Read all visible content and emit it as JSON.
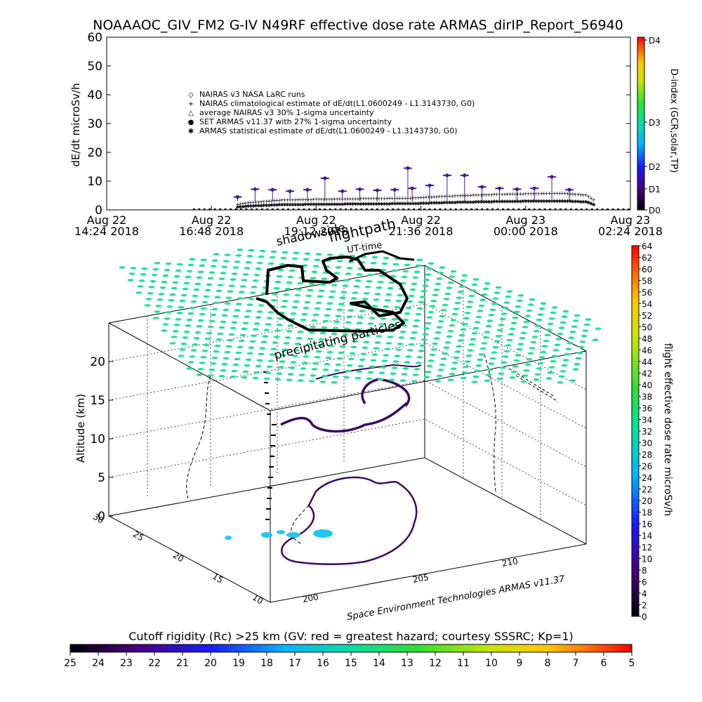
{
  "title": "NOAAAOC_GIV_FM2 G-IV    N49RF   effective dose rate ARMAS_dirIP_Report_56940",
  "colors": {
    "bg": "#ffffff",
    "grid": "#000000",
    "set_armas": "#4b1a8a",
    "green_field": "#1fe39a",
    "cyan_patch": "#1ec8f0"
  },
  "chart_data": [
    {
      "type": "scatter",
      "ylabel": "dE/dt microSv/h",
      "ylim": [
        0,
        60
      ],
      "yticks": [
        "0",
        "10",
        "20",
        "30",
        "40",
        "50",
        "60"
      ],
      "xticks": [
        {
          "day": "Aug 22",
          "time": "14:24 2018"
        },
        {
          "day": "Aug 22",
          "time": "16:48 2018"
        },
        {
          "day": "Aug 22",
          "time": "19:12 2018"
        },
        {
          "day": "Aug 22",
          "time": "21:36 2018"
        },
        {
          "day": "Aug 23",
          "time": "00:00 2018"
        },
        {
          "day": "Aug 23",
          "time": "02:24 2018"
        }
      ],
      "legend": [
        {
          "symbol": "◇",
          "label": "NAIRAS v3 NASA LaRC runs"
        },
        {
          "symbol": "+",
          "label": "NAIRAS climatological estimate of dE/dt(L1.0600249 - L1.3143730, G0)"
        },
        {
          "symbol": "△",
          "label": "average NAIRAS v3 30% 1-sigma uncertainty"
        },
        {
          "symbol": "●",
          "label": "SET ARMAS v11.37 with 27% 1-sigma uncertainty"
        },
        {
          "symbol": "✱",
          "label": "ARMAS statistical estimate of dE/dt(L1.0600249 - L1.3143730, G0)"
        }
      ],
      "legend_position": "upper-left",
      "dindex_labels": [
        "D0",
        "D1",
        "D2",
        "D3",
        "D4"
      ],
      "dindex_title": "D-index (GCR,solar,TP)",
      "series": [
        {
          "name": "NAIRAS climatological estimate of dE/dt(L1.0600249 - L1.3143730, G0)",
          "hours": [
            0.5,
            1.5,
            2.0,
            2.5,
            2.8,
            3.2,
            4.0,
            5.0,
            6.0,
            7.0,
            8.0,
            9.0,
            10.0,
            10.5,
            11.0,
            11.3,
            11.8
          ],
          "values": [
            0,
            0,
            0,
            0.5,
            1.5,
            2.5,
            3.5,
            3.8,
            4.0,
            4.2,
            5.0,
            5.5,
            5.8,
            5.8,
            5.2,
            2.0,
            0
          ]
        },
        {
          "name": "SET ARMAS v11.37 with 27% 1-sigma uncertainty",
          "hours": [
            3.0,
            3.4,
            3.8,
            4.2,
            4.6,
            5.0,
            5.4,
            5.8,
            6.2,
            6.6,
            6.9,
            7.0,
            7.4,
            7.8,
            8.2,
            8.6,
            9.0,
            9.4,
            9.8,
            10.2,
            10.6
          ],
          "values": [
            4.5,
            7.2,
            7.0,
            6.5,
            7.0,
            11.0,
            6.5,
            7.2,
            6.8,
            7.0,
            14.5,
            7.5,
            8.5,
            12.0,
            12.0,
            8.0,
            7.5,
            7.2,
            7.5,
            11.5,
            7.0
          ]
        }
      ]
    },
    {
      "type": "scatter",
      "zlabel": "Altitude (km)",
      "zticks": [
        "0",
        "5",
        "10",
        "15",
        "20"
      ],
      "lat_ticks": [
        "10",
        "15",
        "20",
        "25",
        "30"
      ],
      "lon_ticks": [
        "200",
        "205",
        "210"
      ],
      "annotations": [
        "shadowside",
        "flightpath",
        "UT-time",
        "precipitating particles"
      ],
      "credit": "Space Environment Technologies ARMAS v11.37",
      "dose_colorbar_title": "flight effective dose rate microSv/h",
      "dose_colorbar_ticks": [
        "0",
        "2",
        "4",
        "6",
        "8",
        "10",
        "12",
        "14",
        "16",
        "18",
        "20",
        "22",
        "24",
        "26",
        "28",
        "30",
        "32",
        "34",
        "36",
        "38",
        "40",
        "42",
        "44",
        "46",
        "48",
        "50",
        "52",
        "54",
        "56",
        "58",
        "60",
        "62",
        "64"
      ]
    }
  ],
  "bottom_colorbar": {
    "title": "Cutoff rigidity (Rc) >25 km (GV: red = greatest hazard; courtesy SSSRC; Kp=1)",
    "ticks": [
      "25",
      "24",
      "23",
      "22",
      "21",
      "20",
      "19",
      "18",
      "17",
      "16",
      "15",
      "14",
      "13",
      "12",
      "11",
      "10",
      "9",
      "8",
      "7",
      "6",
      "5"
    ]
  }
}
